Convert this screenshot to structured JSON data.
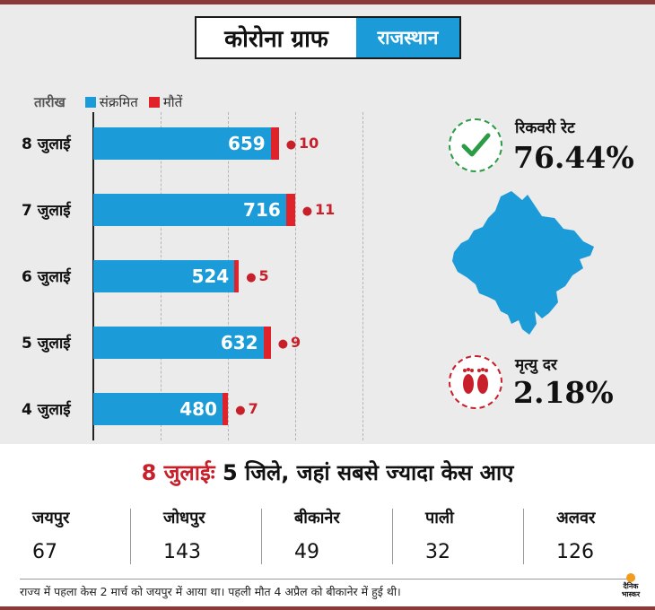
{
  "title": {
    "main": "कोरोना ग्राफ",
    "sub": "राजस्थान"
  },
  "legend": {
    "date_label": "तारीख",
    "infected_label": "संक्रमित",
    "deaths_label": "मौतें"
  },
  "colors": {
    "infected": "#1b9bd8",
    "deaths": "#e0222b",
    "header_bar": "#8b3a3a",
    "positive": "#2b9b46"
  },
  "chart_data": {
    "type": "bar",
    "orientation": "horizontal",
    "categories": [
      "8 जुलाई",
      "7 जुलाई",
      "6 जुलाई",
      "5 जुलाई",
      "4 जुलाई"
    ],
    "series": [
      {
        "name": "संक्रमित",
        "values": [
          659,
          716,
          524,
          632,
          480
        ]
      },
      {
        "name": "मौतें",
        "values": [
          10,
          11,
          5,
          9,
          7
        ]
      }
    ],
    "xlim": [
      0,
      1000
    ],
    "grid": true
  },
  "stats": {
    "recovery_label": "रिकवरी रेट",
    "recovery_value": "76.44%",
    "recovery_icon": "check-icon",
    "death_rate_label": "मृत्यु दर",
    "death_rate_value": "2.18%",
    "death_rate_icon": "footprints-icon"
  },
  "districts": {
    "heading_date": "8 जुलाईः",
    "heading_text": "5 जिले, जहां सबसे ज्यादा केस आए",
    "items": [
      {
        "name": "जयपुर",
        "value": "67"
      },
      {
        "name": "जोधपुर",
        "value": "143"
      },
      {
        "name": "बीकानेर",
        "value": "49"
      },
      {
        "name": "पाली",
        "value": "32"
      },
      {
        "name": "अलवर",
        "value": "126"
      }
    ]
  },
  "footer": {
    "note": "राज्य में पहला केस 2 मार्च को जयपुर में आया था। पहली मौत 4 अप्रैल को बीकानेर में हुई थी।",
    "brand_line1": "दैनिक",
    "brand_line2": "भास्कर"
  }
}
